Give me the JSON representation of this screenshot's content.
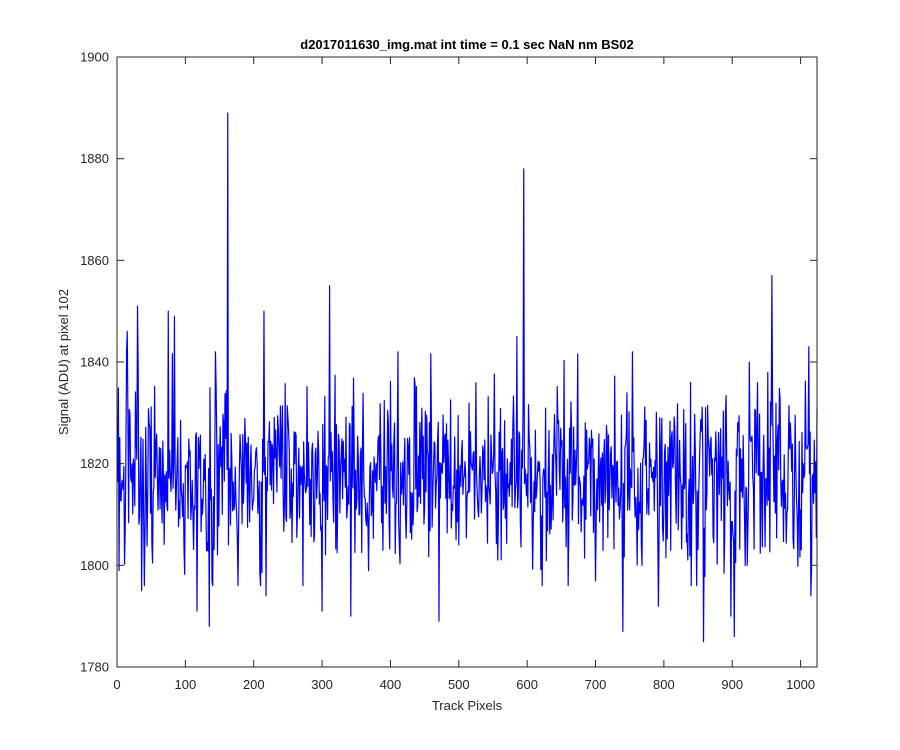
{
  "chart_data": {
    "type": "line",
    "title": "d2017011630_img.mat int time = 0.1 sec  NaN nm BS02",
    "xlabel": "Track Pixels",
    "ylabel": "Signal (ADU) at pixel 102",
    "xlim": [
      0,
      1024
    ],
    "ylim": [
      1780,
      1900
    ],
    "xticks": [
      0,
      100,
      200,
      300,
      400,
      500,
      600,
      700,
      800,
      900,
      1000
    ],
    "yticks": [
      1780,
      1800,
      1820,
      1840,
      1860,
      1880,
      1900
    ],
    "grid": false,
    "legend": "none",
    "series_color": "#0000ff",
    "axis_color": "#262626",
    "series": [
      {
        "x_start": 1,
        "x_step": 1,
        "noise_model": {
          "mean": 1817,
          "sd": 9,
          "seed": 20170116,
          "count": 1024
        },
        "spikes": [
          {
            "x": 15,
            "y": 1846
          },
          {
            "x": 30,
            "y": 1851
          },
          {
            "x": 36,
            "y": 1795
          },
          {
            "x": 75,
            "y": 1850
          },
          {
            "x": 84,
            "y": 1849
          },
          {
            "x": 117,
            "y": 1791
          },
          {
            "x": 135,
            "y": 1788
          },
          {
            "x": 162,
            "y": 1889
          },
          {
            "x": 215,
            "y": 1850
          },
          {
            "x": 218,
            "y": 1794
          },
          {
            "x": 311,
            "y": 1855
          },
          {
            "x": 300,
            "y": 1791
          },
          {
            "x": 342,
            "y": 1790
          },
          {
            "x": 471,
            "y": 1789
          },
          {
            "x": 585,
            "y": 1845
          },
          {
            "x": 595,
            "y": 1878
          },
          {
            "x": 660,
            "y": 1796
          },
          {
            "x": 740,
            "y": 1787
          },
          {
            "x": 792,
            "y": 1792
          },
          {
            "x": 858,
            "y": 1785
          },
          {
            "x": 898,
            "y": 1790
          },
          {
            "x": 903,
            "y": 1786
          },
          {
            "x": 958,
            "y": 1857
          },
          {
            "x": 1012,
            "y": 1843
          },
          {
            "x": 1015,
            "y": 1794
          }
        ]
      }
    ]
  }
}
